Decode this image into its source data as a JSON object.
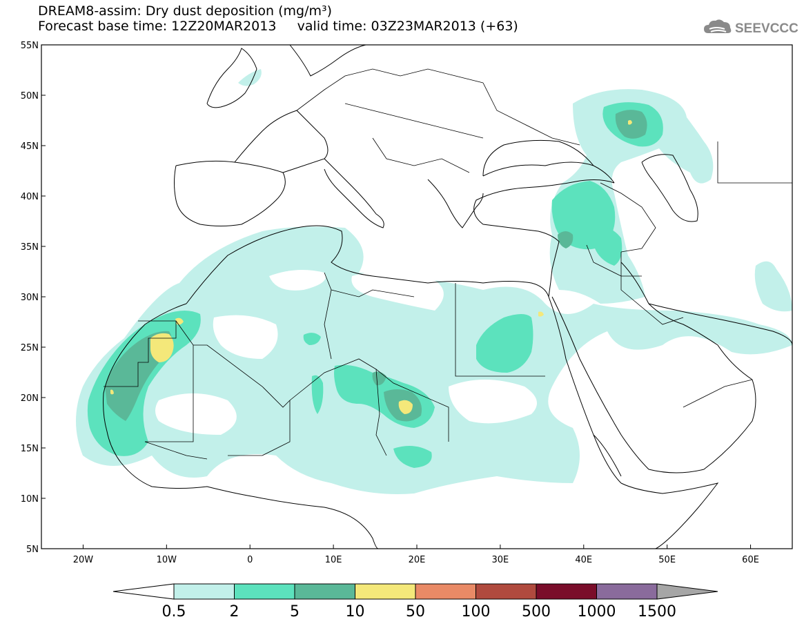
{
  "title_line1": "DREAM8-assim: Dry dust deposition (mg/m³)",
  "title_line2": "Forecast base time: 12Z20MAR2013     valid time: 03Z23MAR2013 (+63)",
  "logo_text": "SEEVCCC",
  "lat_labels": [
    "55N",
    "50N",
    "45N",
    "40N",
    "35N",
    "30N",
    "25N",
    "20N",
    "15N",
    "10N",
    "5N"
  ],
  "lat_values": [
    55,
    50,
    45,
    40,
    35,
    30,
    25,
    20,
    15,
    10,
    5
  ],
  "lon_labels": [
    "20W",
    "10W",
    "0",
    "10E",
    "20E",
    "30E",
    "40E",
    "50E",
    "60E"
  ],
  "lon_values": [
    -20,
    -10,
    0,
    10,
    20,
    30,
    40,
    50,
    60
  ],
  "extent": {
    "lon_min": -25,
    "lon_max": 65,
    "lat_min": 5,
    "lat_max": 55
  },
  "colorbar": {
    "labels": [
      "0.5",
      "2",
      "5",
      "10",
      "50",
      "100",
      "500",
      "1000",
      "1500"
    ],
    "colors": [
      "#c2f0ea",
      "#5ce2bd",
      "#5ab898",
      "#f4e87a",
      "#e98a66",
      "#b04a3e",
      "#7a0d2a",
      "#8a6b9c",
      "#a6a6a6"
    ],
    "below_color": "#ffffff"
  },
  "colors": {
    "coast": "#000000",
    "frame": "#000000"
  }
}
